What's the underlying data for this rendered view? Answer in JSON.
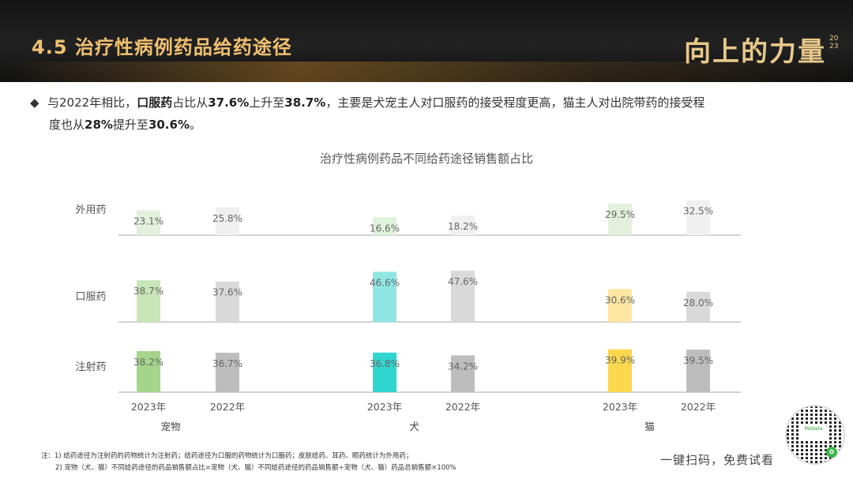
{
  "header": {
    "title": "4.5  治疗性病例药品给药途径",
    "brand": "向上的力量",
    "brand_year": "2023"
  },
  "summary": {
    "bullet": "◆",
    "part1": "与2022年相比，",
    "bold1": "口服药",
    "part2": "占比从",
    "bold2": "37.6%",
    "part3": "上升至",
    "bold3": "38.7%",
    "part4": "，主要是犬宠主人对口服药的接受程度更高，猫主人对出院带药的接受程",
    "part5": "度也从",
    "bold4": "28%",
    "part6": "提升至",
    "bold5": "30.6%",
    "part7": "。"
  },
  "chart_data": {
    "type": "bar",
    "title": "治疗性病例药品不同给药途径销售额占比",
    "rows": [
      "外用药",
      "口服药",
      "注射药"
    ],
    "groups": [
      {
        "name": "宠物",
        "years": [
          "2023年",
          "2022年"
        ],
        "values": {
          "外用药": [
            23.1,
            25.8
          ],
          "口服药": [
            38.7,
            37.6
          ],
          "注射药": [
            38.2,
            36.7
          ]
        },
        "labels": {
          "外用药": [
            "23.1%",
            "25.8%"
          ],
          "口服药": [
            "38.7%",
            "37.6%"
          ],
          "注射药": [
            "38.2%",
            "36.7%"
          ]
        },
        "colors_2023": {
          "外用药": "#e3f0dc",
          "口服药": "#c8e5b8",
          "注射药": "#a5d58b"
        }
      },
      {
        "name": "犬",
        "years": [
          "2023年",
          "2022年"
        ],
        "values": {
          "外用药": [
            16.6,
            18.2
          ],
          "口服药": [
            46.6,
            47.6
          ],
          "注射药": [
            36.8,
            34.2
          ]
        },
        "labels": {
          "外用药": [
            "16.6%",
            "18.2%"
          ],
          "口服药": [
            "46.6%",
            "47.6%"
          ],
          "注射药": [
            "36.8%",
            "34.2%"
          ]
        },
        "colors_2023": {
          "外用药": "#e0f3dc",
          "口服药": "#8fe6e3",
          "注射药": "#2fd6cf"
        }
      },
      {
        "name": "猫",
        "years": [
          "2023年",
          "2022年"
        ],
        "values": {
          "外用药": [
            29.5,
            32.5
          ],
          "口服药": [
            30.6,
            28.0
          ],
          "注射药": [
            39.9,
            39.5
          ]
        },
        "labels": {
          "外用药": [
            "29.5%",
            "32.5%"
          ],
          "口服药": [
            "30.6%",
            "28.0%"
          ],
          "注射药": [
            "39.9%",
            "39.5%"
          ]
        },
        "colors_2023": {
          "外用药": "#e3f0dc",
          "口服药": "#fde6a0",
          "注射药": "#fbd74e"
        }
      }
    ],
    "colors_2022": {
      "外用药": "#f0f0f0",
      "口服药": "#d9d9d9",
      "注射药": "#bdbdbd"
    },
    "row_max": 50
  },
  "footnote": {
    "line1": "注：1) 给药途径为注射药的药物统计为注射药；给药途径为口服的药物统计为口服药；皮肤给药、耳药、眼药统计为外用药；",
    "line2": "2) 宠物（犬、猫）不同给药途径的药品销售额占比=宠物（犬、猫）不同给药途径的药品销售额÷宠物（犬、猫）药品总销售额×100%"
  },
  "cta": {
    "label": "一键扫码，免费试看",
    "qr_text": "Petdata"
  }
}
